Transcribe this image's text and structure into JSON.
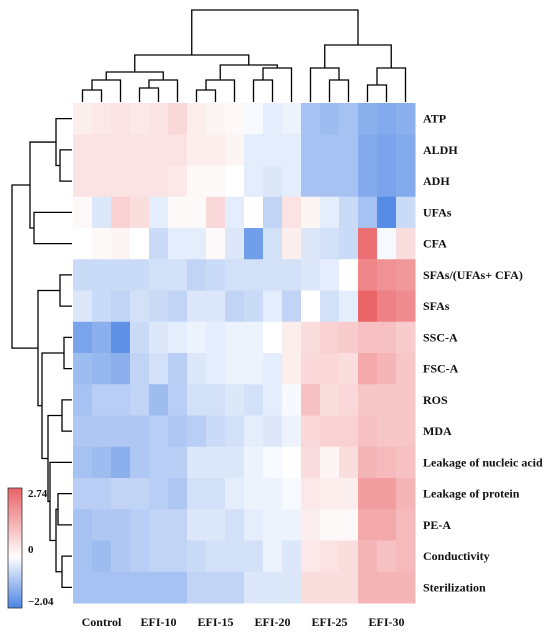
{
  "chart_data": {
    "type": "heatmap",
    "title": "",
    "xlabel": "",
    "ylabel": "",
    "legend_placement": "bottom-left",
    "color_scale": {
      "min": -2.04,
      "max": 2.74,
      "mid": 0,
      "min_label": "−2.04",
      "mid_label": "0",
      "max_label": "2.74",
      "low_color": "#4a83e4",
      "mid_color": "#ffffff",
      "high_color": "#ea6266"
    },
    "column_groups": [
      {
        "label": "Control",
        "n": 3
      },
      {
        "label": "EFI-10",
        "n": 3
      },
      {
        "label": "EFI-15",
        "n": 3
      },
      {
        "label": "EFI-20",
        "n": 3
      },
      {
        "label": "EFI-25",
        "n": 3
      },
      {
        "label": "EFI-30",
        "n": 3
      }
    ],
    "rows": [
      "ATP",
      "ALDH",
      "ADH",
      "UFAs",
      "CFA",
      "SFAs/(UFAs+ CFA)",
      "SFAs",
      "SSC-A",
      "FSC-A",
      "ROS",
      "MDA",
      "Leakage of nucleic acid",
      "Leakage of protein",
      "PE-A",
      "Conductivity",
      "Sterilization"
    ],
    "values": [
      [
        0.3,
        0.4,
        0.5,
        0.4,
        0.5,
        0.7,
        0.3,
        0.2,
        0.1,
        -0.1,
        -0.3,
        -0.2,
        -1.0,
        -1.1,
        -1.0,
        -1.3,
        -1.4,
        -1.3
      ],
      [
        0.5,
        0.5,
        0.5,
        0.5,
        0.5,
        0.5,
        0.3,
        0.3,
        0.2,
        -0.3,
        -0.3,
        -0.3,
        -1.0,
        -1.0,
        -1.0,
        -1.4,
        -1.5,
        -1.4
      ],
      [
        0.5,
        0.5,
        0.5,
        0.5,
        0.5,
        0.4,
        0.1,
        0.1,
        0.0,
        -0.3,
        -0.4,
        -0.3,
        -1.0,
        -1.0,
        -1.0,
        -1.4,
        -1.5,
        -1.4
      ],
      [
        0.1,
        -0.4,
        0.8,
        0.6,
        -0.3,
        0.1,
        0.1,
        0.7,
        -0.3,
        0.0,
        -0.7,
        0.5,
        0.2,
        -0.3,
        -0.6,
        -1.0,
        -1.9,
        -0.6
      ],
      [
        0.0,
        0.1,
        0.2,
        0.0,
        -0.6,
        -0.3,
        -0.3,
        0.1,
        -0.4,
        -1.6,
        -0.5,
        0.3,
        -0.4,
        -0.5,
        -0.6,
        2.5,
        -0.1,
        0.6
      ],
      [
        -0.6,
        -0.6,
        -0.6,
        -0.6,
        -0.5,
        -0.5,
        -0.7,
        -0.6,
        -0.5,
        -0.5,
        -0.5,
        -0.5,
        -0.4,
        -0.3,
        0.0,
        2.1,
        1.9,
        1.8
      ],
      [
        -0.4,
        -0.6,
        -0.7,
        -0.5,
        -0.6,
        -0.7,
        -0.4,
        -0.4,
        -0.7,
        -0.6,
        -0.3,
        -0.7,
        0.0,
        -0.5,
        -0.3,
        2.7,
        2.2,
        2.0
      ],
      [
        -1.5,
        -1.3,
        -1.8,
        -0.6,
        -0.4,
        -0.3,
        -0.2,
        -0.3,
        -0.2,
        -0.2,
        0.0,
        0.3,
        0.6,
        0.8,
        0.9,
        1.1,
        1.1,
        0.9
      ],
      [
        -1.1,
        -1.2,
        -1.3,
        -0.7,
        -0.5,
        -0.8,
        -0.4,
        -0.3,
        -0.2,
        -0.2,
        -0.3,
        0.3,
        0.7,
        0.7,
        0.6,
        1.5,
        1.3,
        1.0
      ],
      [
        -1.0,
        -0.8,
        -0.8,
        -0.7,
        -1.1,
        -0.8,
        -0.5,
        -0.5,
        -0.4,
        -0.5,
        -0.3,
        -0.1,
        1.1,
        0.6,
        0.7,
        1.0,
        1.0,
        1.0
      ],
      [
        -0.9,
        -0.9,
        -0.9,
        -0.9,
        -0.8,
        -0.9,
        -0.8,
        -0.6,
        -0.5,
        -0.3,
        -0.4,
        -0.2,
        0.7,
        0.8,
        0.8,
        1.1,
        1.0,
        1.0
      ],
      [
        -1.0,
        -1.1,
        -1.3,
        -0.9,
        -0.8,
        -0.8,
        -0.4,
        -0.4,
        -0.4,
        -0.2,
        -0.1,
        0.0,
        0.6,
        0.2,
        0.6,
        1.3,
        1.2,
        1.1
      ],
      [
        -0.8,
        -0.8,
        -0.7,
        -0.7,
        -0.8,
        -0.9,
        -0.5,
        -0.5,
        -0.3,
        -0.2,
        -0.2,
        -0.1,
        0.4,
        0.3,
        0.3,
        1.7,
        1.7,
        1.3
      ],
      [
        -1.0,
        -0.9,
        -0.9,
        -0.8,
        -0.7,
        -0.7,
        -0.4,
        -0.4,
        -0.5,
        -0.3,
        -0.2,
        -0.2,
        0.3,
        0.1,
        0.1,
        1.5,
        1.5,
        1.2
      ],
      [
        -1.0,
        -1.1,
        -0.9,
        -0.8,
        -0.7,
        -0.7,
        -0.6,
        -0.5,
        -0.5,
        -0.5,
        -0.2,
        -0.4,
        0.4,
        0.5,
        0.6,
        1.3,
        1.1,
        1.2
      ],
      [
        -1.0,
        -1.0,
        -1.0,
        -1.0,
        -1.0,
        -1.0,
        -0.7,
        -0.7,
        -0.7,
        -0.4,
        -0.4,
        -0.4,
        0.6,
        0.6,
        0.6,
        1.3,
        1.3,
        1.3
      ]
    ]
  }
}
